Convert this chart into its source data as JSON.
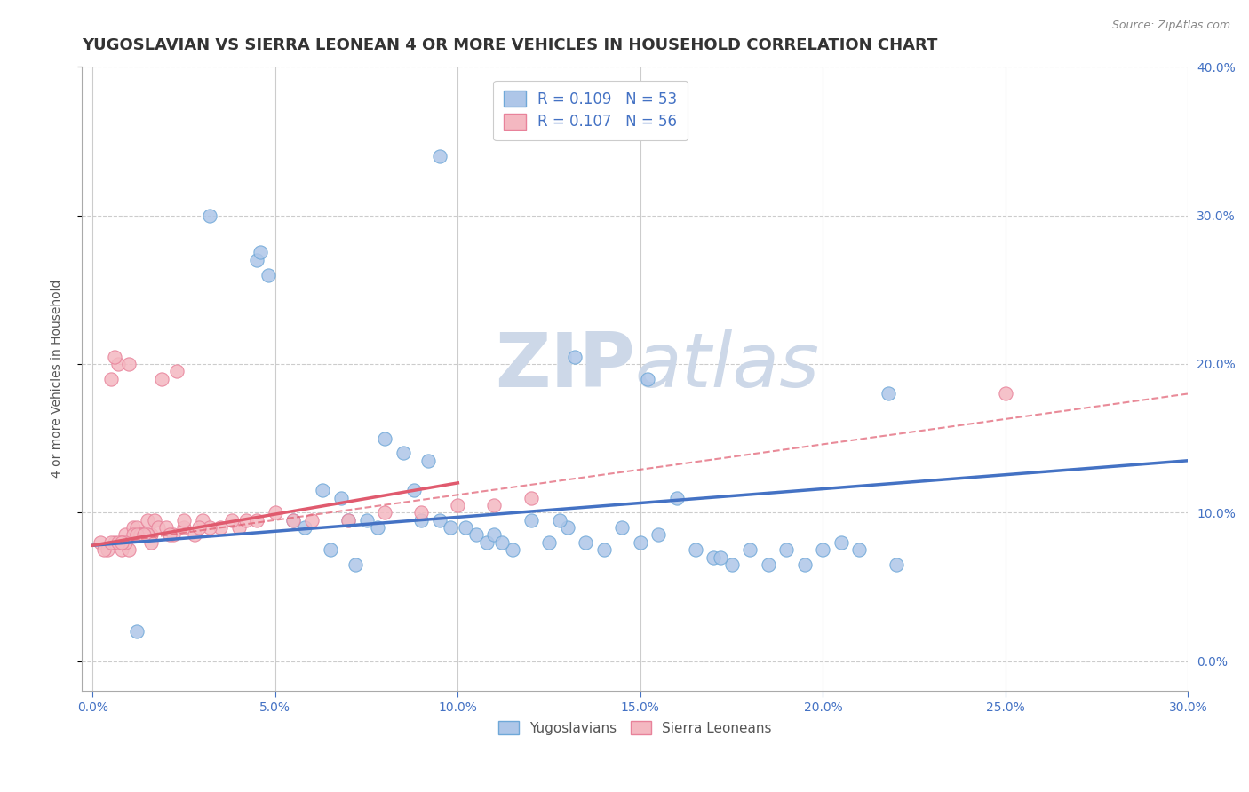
{
  "title": "YUGOSLAVIAN VS SIERRA LEONEAN 4 OR MORE VEHICLES IN HOUSEHOLD CORRELATION CHART",
  "source": "Source: ZipAtlas.com",
  "ylabel": "4 or more Vehicles in Household",
  "x_tick_labels": [
    "0.0%",
    "5.0%",
    "10.0%",
    "15.0%",
    "20.0%",
    "25.0%",
    "30.0%"
  ],
  "x_ticks": [
    0.0,
    5.0,
    10.0,
    15.0,
    20.0,
    25.0,
    30.0
  ],
  "xlim": [
    -0.3,
    30.0
  ],
  "y_tick_labels_right": [
    "0.0%",
    "10.0%",
    "20.0%",
    "30.0%",
    "40.0%"
  ],
  "y_ticks": [
    0.0,
    10.0,
    20.0,
    30.0,
    40.0
  ],
  "ylim": [
    -2.0,
    40.0
  ],
  "legend_entries": [
    {
      "label": "R = 0.109   N = 53",
      "color": "#aec6e8"
    },
    {
      "label": "R = 0.107   N = 56",
      "color": "#f4b8c1"
    }
  ],
  "legend_labels_bottom": [
    "Yugoslavians",
    "Sierra Leoneans"
  ],
  "blue_scatter_x": [
    1.2,
    4.5,
    4.8,
    5.5,
    6.3,
    6.8,
    7.5,
    7.8,
    8.0,
    8.5,
    8.8,
    9.0,
    9.5,
    9.8,
    10.2,
    10.5,
    10.8,
    11.0,
    11.5,
    12.0,
    12.5,
    13.0,
    13.5,
    14.0,
    15.0,
    15.5,
    16.0,
    16.5,
    17.0,
    17.5,
    18.0,
    18.5,
    19.0,
    19.5,
    20.0,
    21.0,
    22.0,
    9.5,
    14.5,
    7.2,
    11.2,
    6.5,
    5.8,
    17.2,
    3.2,
    4.6,
    13.2,
    15.2,
    20.5,
    21.8,
    7.0,
    9.2,
    12.8
  ],
  "blue_scatter_y": [
    2.0,
    27.0,
    26.0,
    9.5,
    11.5,
    11.0,
    9.5,
    9.0,
    15.0,
    14.0,
    11.5,
    9.5,
    9.5,
    9.0,
    9.0,
    8.5,
    8.0,
    8.5,
    7.5,
    9.5,
    8.0,
    9.0,
    8.0,
    7.5,
    8.0,
    8.5,
    11.0,
    7.5,
    7.0,
    6.5,
    7.5,
    6.5,
    7.5,
    6.5,
    7.5,
    7.5,
    6.5,
    34.0,
    9.0,
    6.5,
    8.0,
    7.5,
    9.0,
    7.0,
    30.0,
    27.5,
    20.5,
    19.0,
    8.0,
    18.0,
    9.5,
    13.5,
    9.5
  ],
  "pink_scatter_x": [
    0.2,
    0.4,
    0.5,
    0.6,
    0.7,
    0.8,
    0.9,
    1.0,
    1.1,
    1.2,
    1.3,
    1.4,
    1.5,
    1.6,
    1.7,
    1.8,
    2.0,
    2.2,
    2.5,
    2.8,
    3.0,
    3.5,
    4.0,
    4.2,
    5.0,
    5.5,
    6.0,
    7.0,
    8.0,
    9.0,
    10.0,
    11.0,
    12.0,
    2.3,
    1.9,
    0.6,
    1.0,
    2.5,
    3.8,
    4.5,
    0.8,
    1.1,
    1.3,
    25.0,
    1.5,
    0.9,
    2.1,
    1.6,
    0.3,
    0.5,
    1.2,
    0.7,
    0.8,
    3.2,
    1.4,
    2.9
  ],
  "pink_scatter_y": [
    8.0,
    7.5,
    19.0,
    8.0,
    20.0,
    7.5,
    8.5,
    7.5,
    9.0,
    9.0,
    8.5,
    8.5,
    9.5,
    8.5,
    9.5,
    9.0,
    9.0,
    8.5,
    9.0,
    8.5,
    9.5,
    9.0,
    9.0,
    9.5,
    10.0,
    9.5,
    9.5,
    9.5,
    10.0,
    10.0,
    10.5,
    10.5,
    11.0,
    19.5,
    19.0,
    20.5,
    20.0,
    9.5,
    9.5,
    9.5,
    8.0,
    8.5,
    8.5,
    18.0,
    8.5,
    8.0,
    8.5,
    8.0,
    7.5,
    8.0,
    8.5,
    8.0,
    8.0,
    9.0,
    8.5,
    9.0
  ],
  "blue_line_x": [
    0.0,
    30.0
  ],
  "blue_line_y": [
    7.8,
    13.5
  ],
  "pink_solid_line_x": [
    0.0,
    10.0
  ],
  "pink_solid_line_y": [
    7.8,
    12.0
  ],
  "pink_dashed_line_x": [
    0.0,
    30.0
  ],
  "pink_dashed_line_y": [
    7.8,
    18.0
  ],
  "blue_dot_color": "#aec6e8",
  "blue_dot_edge": "#6fa8d8",
  "pink_dot_color": "#f4b8c1",
  "pink_dot_edge": "#e8829a",
  "blue_line_color": "#4472c4",
  "pink_solid_color": "#e05a6e",
  "pink_dashed_color": "#e05a6e",
  "watermark_zip": "ZIP",
  "watermark_atlas": "atlas",
  "watermark_color": "#cdd8e8",
  "grid_color": "#cccccc",
  "background_color": "#ffffff",
  "title_fontsize": 13,
  "label_fontsize": 10,
  "tick_fontsize": 10
}
